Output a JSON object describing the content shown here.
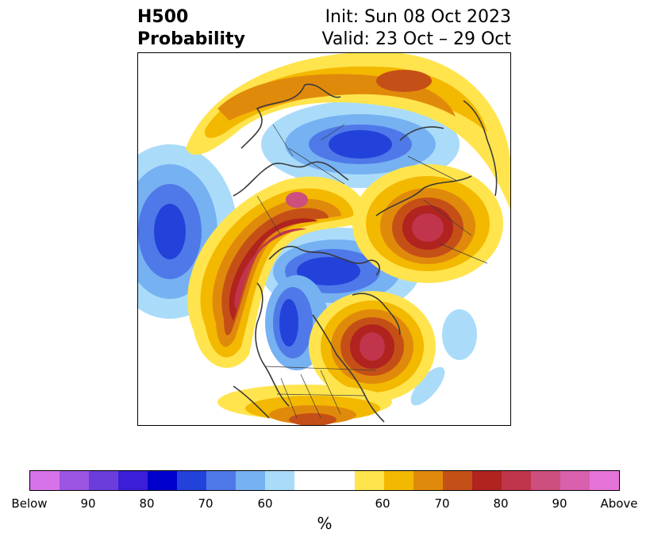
{
  "title": {
    "left_line1": "H500",
    "left_line2": "Probability",
    "right_line1": "Init: Sun 08 Oct 2023",
    "right_line2": "Valid: 23 Oct – 29 Oct"
  },
  "colorbar": {
    "unit": "%",
    "tick_labels": [
      "Below",
      "90",
      "80",
      "70",
      "60",
      "60",
      "70",
      "80",
      "90",
      "Above"
    ],
    "colors": [
      "#d673e8",
      "#9b55e2",
      "#6b3ddb",
      "#3a1ed8",
      "#0000cc",
      "#2342da",
      "#4f79e8",
      "#76b1f2",
      "#aadcfa",
      "#ffffff",
      "#ffe44d",
      "#f3b800",
      "#e08a0c",
      "#c55017",
      "#b0231f",
      "#c0354c",
      "#cc4f7d",
      "#d860ad",
      "#e673d8"
    ]
  },
  "colors": {
    "land_outline": "#3a3a3a",
    "below_strong": "#1f3bd1",
    "above_strong": "#b0231f"
  }
}
